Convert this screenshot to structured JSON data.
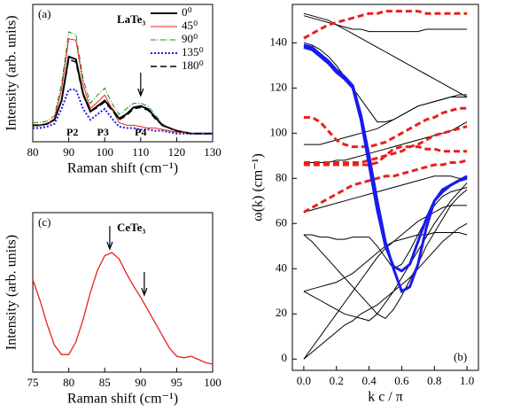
{
  "chart_data": [
    {
      "type": "line",
      "panel": "(a)",
      "sample": "LaTe₃",
      "xlabel": "Raman shift (cm⁻¹)",
      "ylabel": "Intensity (arb. units)",
      "xlim": [
        80,
        130
      ],
      "xticks": [
        80,
        90,
        100,
        110,
        120,
        130
      ],
      "ylim": [
        0,
        100
      ],
      "legend": "upper right",
      "peaks": [
        {
          "text": "P2",
          "x": 91
        },
        {
          "text": "P3",
          "x": 99.5
        },
        {
          "text": "P4",
          "x": 110
        }
      ],
      "arrows": [
        110
      ],
      "x": [
        80,
        82,
        84,
        86,
        88,
        90,
        92,
        94,
        96,
        98,
        100,
        102,
        104,
        106,
        108,
        110,
        112,
        114,
        116,
        118,
        120,
        122,
        124,
        126,
        128,
        130
      ],
      "series": [
        {
          "name": "0⁰",
          "color": "#000000",
          "dash": "solid",
          "width": 2,
          "values": [
            12,
            12,
            13,
            16,
            30,
            62,
            60,
            35,
            22,
            26,
            30,
            24,
            17,
            20,
            25,
            26,
            24,
            18,
            12,
            10,
            8,
            7,
            6,
            6,
            6,
            6
          ]
        },
        {
          "name": "45⁰",
          "color": "#e8201c",
          "dash": "solid",
          "width": 1,
          "values": [
            12,
            12,
            13,
            17,
            38,
            75,
            74,
            42,
            24,
            29,
            34,
            24,
            14,
            12,
            12,
            11,
            10,
            10,
            9,
            8,
            7,
            7,
            6,
            6,
            6,
            6
          ]
        },
        {
          "name": "90⁰",
          "color": "#1a8a1a",
          "dash": "dashdot",
          "width": 1,
          "values": [
            14,
            14,
            15,
            19,
            42,
            80,
            78,
            46,
            28,
            34,
            39,
            28,
            20,
            24,
            28,
            28,
            26,
            20,
            13,
            10,
            8,
            7,
            6,
            6,
            6,
            6
          ]
        },
        {
          "name": "135⁰",
          "color": "#1a1aee",
          "dash": "dotted",
          "width": 2,
          "values": [
            10,
            10,
            11,
            13,
            24,
            38,
            38,
            24,
            16,
            20,
            24,
            17,
            11,
            10,
            10,
            9,
            9,
            8,
            8,
            7,
            6,
            6,
            6,
            6,
            6,
            6
          ]
        },
        {
          "name": "180⁰",
          "color": "#000000",
          "dash": "dashed",
          "width": 1.5,
          "values": [
            12,
            12,
            13,
            16,
            30,
            60,
            58,
            34,
            22,
            25,
            29,
            23,
            16,
            19,
            24,
            25,
            23,
            17,
            12,
            10,
            8,
            7,
            6,
            6,
            6,
            6
          ]
        }
      ]
    },
    {
      "type": "line",
      "panel": "(b)",
      "xlabel": "k c / π",
      "ylabel": "ω(k) (cm⁻¹)",
      "xlim": [
        -0.07,
        1.07
      ],
      "xticks": [
        {
          "value": 0,
          "label": "0.0"
        },
        {
          "value": 0.2,
          "label": "0.2"
        },
        {
          "value": 0.4,
          "label": "0.4"
        },
        {
          "value": 0.6,
          "label": "0.6"
        },
        {
          "value": 0.8,
          "label": "0.8"
        },
        {
          "value": 1,
          "label": "1.0"
        }
      ],
      "ylim": [
        -5,
        157
      ],
      "yticks": [
        0,
        20,
        40,
        60,
        80,
        100,
        120,
        140
      ],
      "x": [
        0,
        0.05,
        0.1,
        0.15,
        0.2,
        0.25,
        0.3,
        0.35,
        0.4,
        0.45,
        0.5,
        0.55,
        0.6,
        0.65,
        0.7,
        0.75,
        0.8,
        0.85,
        0.9,
        0.95,
        1
      ],
      "series": [
        {
          "color": "#000000",
          "dash": "solid",
          "width": 1,
          "values": [
            153,
            152,
            151,
            150,
            148,
            146,
            144,
            142,
            140,
            138,
            136,
            134,
            132,
            130,
            128,
            126,
            124,
            122,
            120,
            118,
            116
          ]
        },
        {
          "color": "#000000",
          "dash": "solid",
          "width": 1,
          "values": [
            152,
            151,
            150,
            149,
            148,
            147,
            146,
            146,
            145,
            145,
            145,
            145,
            145,
            145,
            145,
            146,
            146,
            146,
            146,
            146,
            146
          ]
        },
        {
          "color": "#000000",
          "dash": "solid",
          "width": 1,
          "values": [
            140,
            139,
            137,
            134,
            130,
            125,
            120,
            115,
            110,
            105,
            105,
            106,
            108,
            110,
            112,
            113,
            114,
            115,
            116,
            117,
            117
          ]
        },
        {
          "color": "#000000",
          "dash": "solid",
          "width": 1,
          "values": [
            95,
            95,
            95,
            96,
            97,
            98,
            99,
            100,
            101,
            102,
            104,
            106,
            108,
            110,
            112,
            113,
            114,
            115,
            116,
            116,
            116
          ]
        },
        {
          "color": "#000000",
          "dash": "solid",
          "width": 1,
          "values": [
            87,
            87,
            87,
            87,
            88,
            88,
            89,
            90,
            91,
            92,
            93,
            94,
            95,
            96,
            97,
            98,
            99,
            100,
            101,
            103,
            105
          ]
        },
        {
          "color": "#000000",
          "dash": "solid",
          "width": 1,
          "values": [
            65,
            66,
            67,
            68,
            69,
            70,
            71,
            72,
            73,
            74,
            75,
            76,
            77,
            78,
            79,
            80,
            81,
            81,
            81,
            80,
            80
          ]
        },
        {
          "color": "#000000",
          "dash": "solid",
          "width": 1,
          "values": [
            55,
            55,
            54,
            54,
            53,
            53,
            54,
            54,
            54,
            50,
            45,
            40,
            42,
            48,
            55,
            62,
            68,
            72,
            74,
            75,
            76
          ]
        },
        {
          "color": "#000000",
          "dash": "solid",
          "width": 1,
          "values": [
            30,
            31,
            32,
            33,
            34,
            36,
            38,
            41,
            44,
            47,
            50,
            52,
            53,
            54,
            55,
            55,
            56,
            56,
            56,
            56,
            55
          ]
        },
        {
          "color": "#000000",
          "dash": "solid",
          "width": 1,
          "values": [
            0,
            5,
            10,
            15,
            20,
            25,
            30,
            35,
            40,
            45,
            49,
            52,
            55,
            58,
            61,
            63,
            65,
            67,
            68,
            68,
            68
          ]
        },
        {
          "color": "#000000",
          "dash": "solid",
          "width": 1,
          "values": [
            0,
            3,
            6,
            9,
            12,
            15,
            17,
            20,
            22,
            24,
            27,
            30,
            33,
            36,
            40,
            44,
            48,
            52,
            55,
            58,
            60
          ]
        },
        {
          "color": "#000000",
          "dash": "solid",
          "width": 1,
          "values": [
            55,
            52,
            48,
            44,
            40,
            36,
            32,
            28,
            24,
            20,
            18,
            22,
            28,
            35,
            42,
            50,
            56,
            62,
            68,
            72,
            75
          ]
        },
        {
          "color": "#000000",
          "dash": "solid",
          "width": 1,
          "values": [
            30,
            28,
            26,
            24,
            22,
            20,
            19,
            18,
            17,
            20,
            25,
            30,
            36,
            42,
            48,
            54,
            60,
            65,
            70,
            74,
            78
          ]
        },
        {
          "color": "#e8201c",
          "dash": "dashed",
          "width": 3,
          "values": [
            142,
            144,
            146,
            148,
            149,
            150,
            151,
            152,
            153,
            153,
            154,
            154,
            154,
            154,
            154,
            153,
            153,
            153,
            153,
            153,
            153
          ]
        },
        {
          "color": "#e8201c",
          "dash": "dashed",
          "width": 3,
          "values": [
            107,
            107,
            105,
            101,
            97,
            95,
            94,
            94,
            94,
            95,
            96,
            98,
            100,
            102,
            104,
            106,
            107,
            109,
            110,
            111,
            111
          ]
        },
        {
          "color": "#e8201c",
          "dash": "dashed",
          "width": 3,
          "values": [
            87,
            87,
            87,
            87,
            87,
            87,
            87,
            87,
            88,
            89,
            90,
            91,
            92,
            94,
            95,
            97,
            99,
            100,
            101,
            102,
            103
          ]
        },
        {
          "color": "#e8201c",
          "dash": "dashed",
          "width": 3,
          "values": [
            86,
            86,
            86,
            86,
            86,
            86,
            86,
            86,
            86,
            87,
            90,
            93,
            94,
            94,
            94,
            93,
            93,
            92,
            92,
            92,
            92
          ]
        },
        {
          "color": "#e8201c",
          "dash": "dashed",
          "width": 3,
          "values": [
            65,
            67,
            69,
            71,
            73,
            75,
            77,
            78,
            79,
            80,
            81,
            81,
            82,
            83,
            84,
            85,
            86,
            86,
            87,
            87,
            88
          ]
        },
        {
          "color": "#1a1aee",
          "dash": "solid",
          "width": 3,
          "values": [
            139,
            138,
            135,
            132,
            128,
            125,
            121,
            108,
            90,
            70,
            52,
            40,
            30,
            32,
            42,
            58,
            70,
            75,
            77,
            79,
            81
          ]
        },
        {
          "color": "#1a1aee",
          "dash": "solid",
          "width": 3,
          "values": [
            138,
            137,
            134,
            131,
            127,
            124,
            120,
            106,
            86,
            66,
            50,
            41,
            39,
            42,
            52,
            62,
            70,
            74,
            77,
            79,
            80
          ]
        }
      ]
    },
    {
      "type": "line",
      "panel": "(c)",
      "sample": "CeTe₃",
      "xlabel": "Raman shift (cm⁻¹)",
      "ylabel": "Intensity (arb. units)",
      "xlim": [
        75,
        100
      ],
      "xticks": [
        75,
        80,
        85,
        90,
        95,
        100
      ],
      "ylim": [
        0,
        100
      ],
      "arrows": [
        85.7,
        90.5
      ],
      "x": [
        75,
        76,
        77,
        78,
        79,
        80,
        81,
        82,
        83,
        84,
        85,
        86,
        87,
        88,
        89,
        90,
        91,
        92,
        93,
        94,
        95,
        96,
        97,
        98,
        99,
        100
      ],
      "series": [
        {
          "color": "#e8201c",
          "dash": "solid",
          "width": 1.3,
          "values": [
            58,
            45,
            30,
            17,
            11,
            11,
            19,
            33,
            50,
            64,
            73,
            75,
            71,
            62,
            54,
            47,
            39,
            31,
            23,
            15,
            10,
            9,
            10,
            8,
            6,
            5
          ]
        }
      ]
    }
  ]
}
